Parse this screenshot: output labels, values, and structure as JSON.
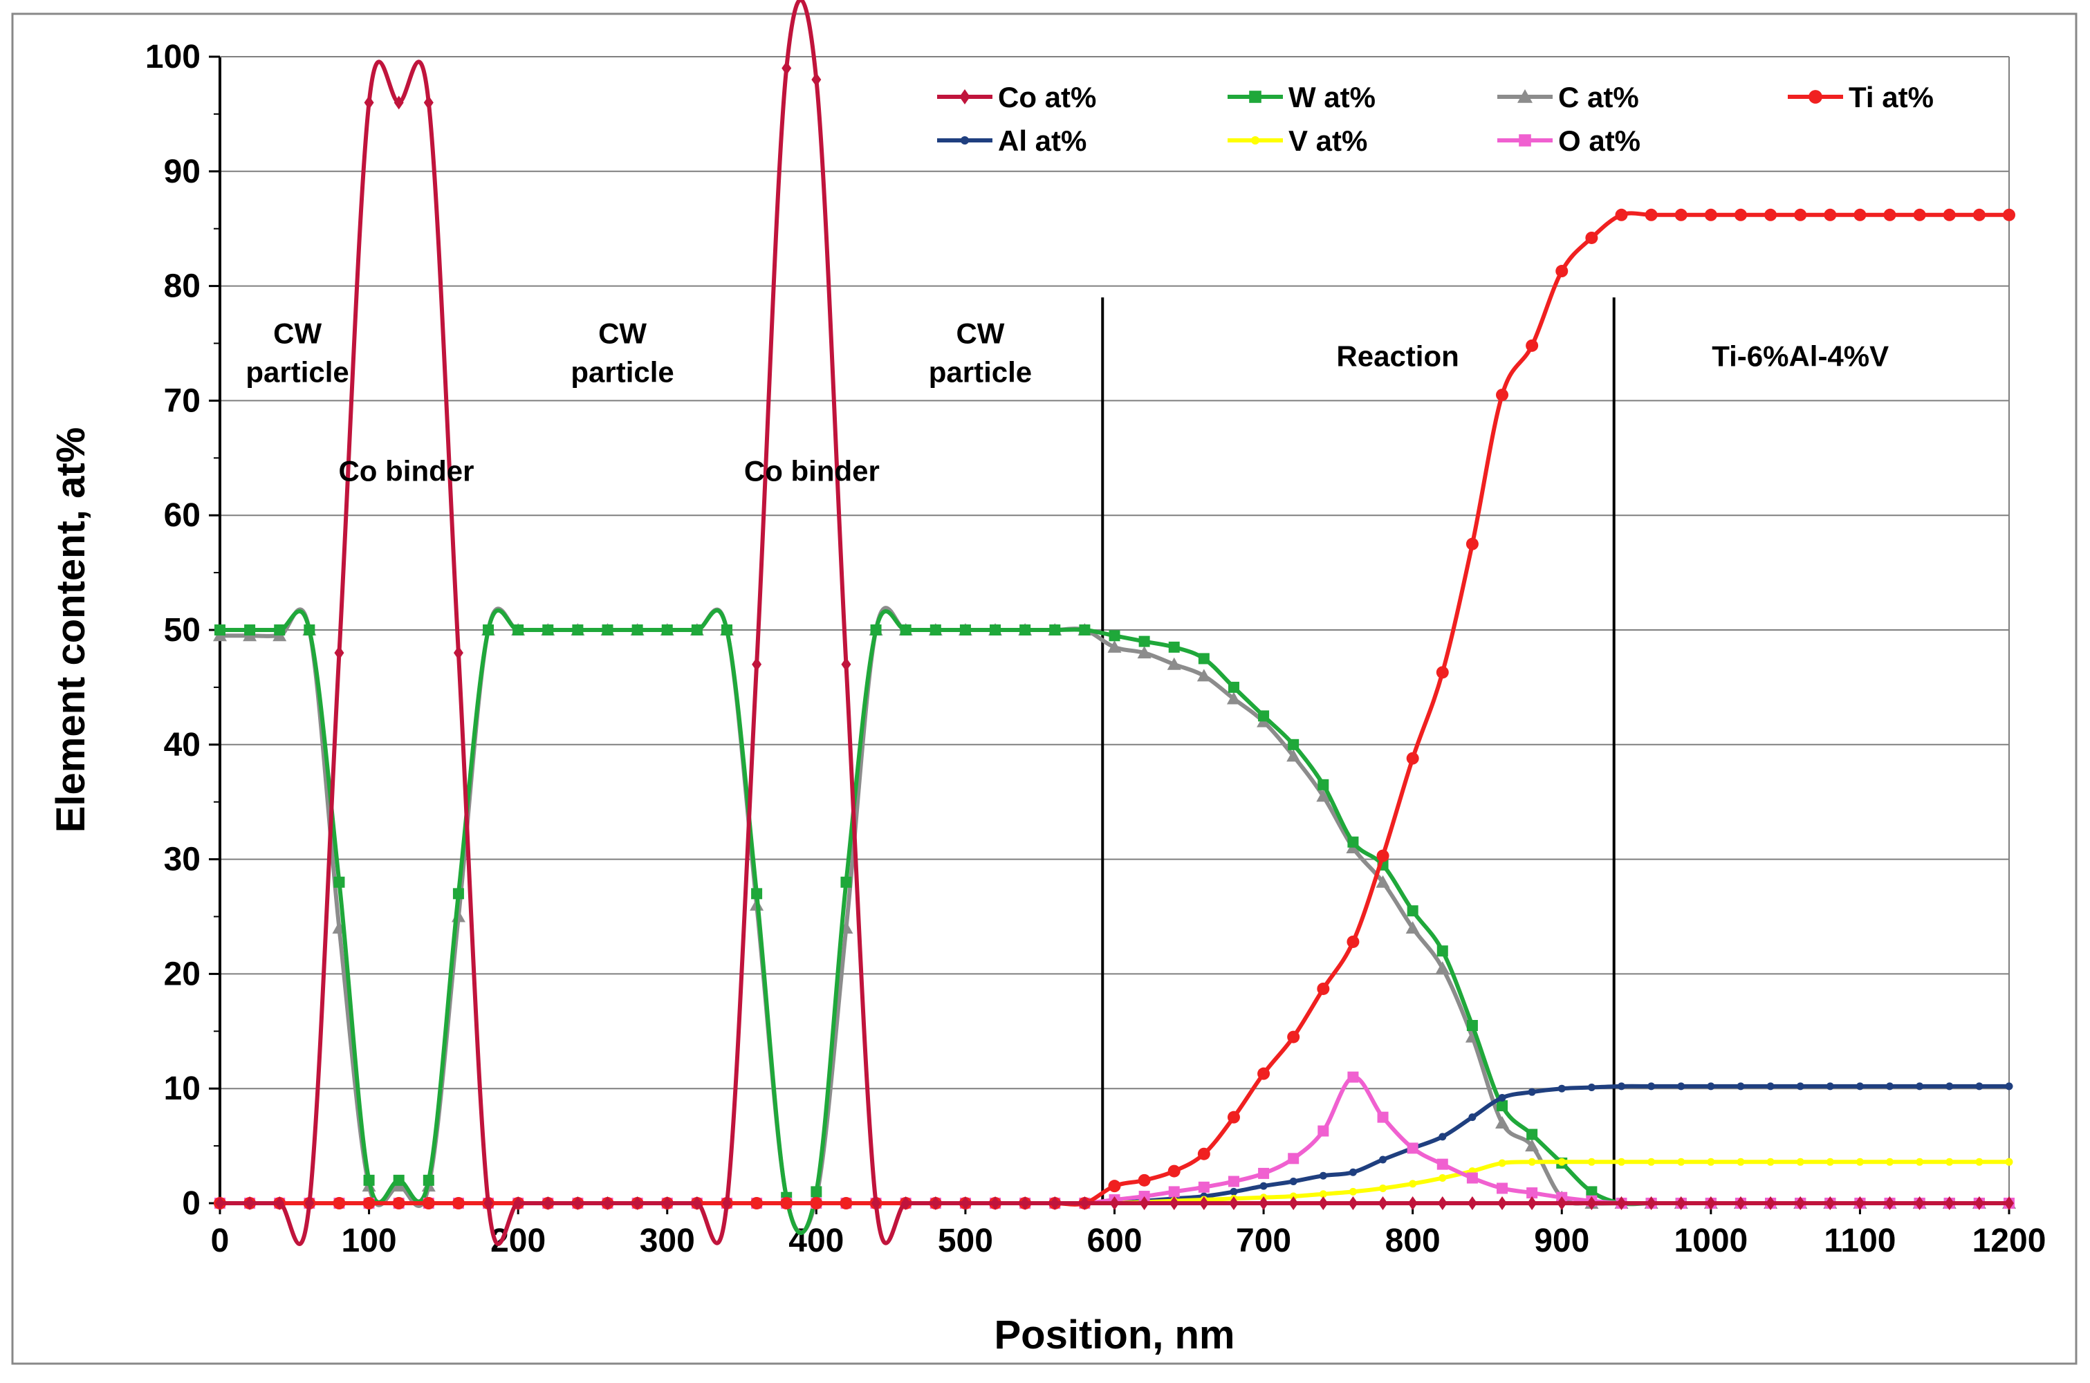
{
  "chart_data": {
    "type": "line",
    "title": "",
    "xlabel": "Position, nm",
    "ylabel": "Element content, at%",
    "xlim": [
      0,
      1200
    ],
    "ylim": [
      0,
      100
    ],
    "xticks": [
      0,
      100,
      200,
      300,
      400,
      500,
      600,
      700,
      800,
      900,
      1000,
      1100,
      1200
    ],
    "yticks": [
      0,
      10,
      20,
      30,
      40,
      50,
      60,
      70,
      80,
      90,
      100
    ],
    "grid": "horizontal",
    "legend_position": "top-right",
    "region_dividers": [
      592,
      935
    ],
    "series": [
      {
        "name": "Co at%",
        "color": "#C0143C",
        "marker": "diamond",
        "x": [
          0,
          20,
          40,
          60,
          80,
          100,
          120,
          140,
          160,
          180,
          200,
          220,
          240,
          260,
          280,
          300,
          320,
          340,
          360,
          380,
          400,
          420,
          440,
          460,
          480,
          500,
          520,
          540,
          560,
          580,
          600,
          620,
          640,
          660,
          680,
          700,
          720,
          740,
          760,
          780,
          800,
          820,
          840,
          860,
          880,
          900,
          920,
          940,
          960,
          980,
          1000,
          1020,
          1040,
          1060,
          1080,
          1100,
          1120,
          1140,
          1160,
          1180,
          1200
        ],
        "y": [
          0,
          0,
          0,
          0,
          48,
          96,
          96,
          96,
          48,
          0,
          0,
          0,
          0,
          0,
          0,
          0,
          0,
          0,
          47,
          99,
          98,
          47,
          0,
          0,
          0,
          0,
          0,
          0,
          0,
          0,
          0,
          0,
          0,
          0,
          0,
          0,
          0,
          0,
          0,
          0,
          0,
          0,
          0,
          0,
          0,
          0,
          0,
          0,
          0,
          0,
          0,
          0,
          0,
          0,
          0,
          0,
          0,
          0,
          0,
          0,
          0
        ]
      },
      {
        "name": "W at%",
        "color": "#1FA83A",
        "marker": "square",
        "x": [
          0,
          20,
          40,
          60,
          80,
          100,
          120,
          140,
          160,
          180,
          200,
          220,
          240,
          260,
          280,
          300,
          320,
          340,
          360,
          380,
          400,
          420,
          440,
          460,
          480,
          500,
          520,
          540,
          560,
          580,
          600,
          620,
          640,
          660,
          680,
          700,
          720,
          740,
          760,
          780,
          800,
          820,
          840,
          860,
          880,
          900,
          920,
          940,
          960,
          980,
          1000,
          1020,
          1040,
          1060,
          1080,
          1100,
          1120,
          1140,
          1160,
          1180,
          1200
        ],
        "y": [
          50,
          50,
          50,
          50,
          28,
          2,
          2,
          2,
          27,
          50,
          50,
          50,
          50,
          50,
          50,
          50,
          50,
          50,
          27,
          0.5,
          1,
          28,
          50,
          50,
          50,
          50,
          50,
          50,
          50,
          50,
          49.5,
          49,
          48.5,
          47.5,
          45,
          42.5,
          40,
          36.5,
          31.5,
          29.5,
          25.5,
          22,
          15.5,
          8.5,
          6,
          3.5,
          1,
          0,
          0,
          0,
          0,
          0,
          0,
          0,
          0,
          0,
          0,
          0,
          0,
          0,
          0
        ]
      },
      {
        "name": "C at%",
        "color": "#8C8C8C",
        "marker": "triangle",
        "x": [
          0,
          20,
          40,
          60,
          80,
          100,
          120,
          140,
          160,
          180,
          200,
          220,
          240,
          260,
          280,
          300,
          320,
          340,
          360,
          380,
          400,
          420,
          440,
          460,
          480,
          500,
          520,
          540,
          560,
          580,
          600,
          620,
          640,
          660,
          680,
          700,
          720,
          740,
          760,
          780,
          800,
          820,
          840,
          860,
          880,
          900,
          920,
          940,
          960,
          980,
          1000,
          1020,
          1040,
          1060,
          1080,
          1100,
          1120,
          1140,
          1160,
          1180,
          1200
        ],
        "y": [
          49.5,
          49.5,
          49.5,
          50,
          24,
          1.5,
          1.5,
          1.5,
          25,
          50,
          50,
          50,
          50,
          50,
          50,
          50,
          50,
          50,
          26,
          0.5,
          0.5,
          24,
          50,
          50,
          50,
          50,
          50,
          50,
          50,
          50,
          48.5,
          48,
          47,
          46,
          44,
          42,
          39,
          35.5,
          31,
          28,
          24,
          20.5,
          14.5,
          7,
          5,
          0.5,
          0,
          0,
          0,
          0,
          0,
          0,
          0,
          0,
          0,
          0,
          0,
          0,
          0,
          0,
          0
        ]
      },
      {
        "name": "Ti at%",
        "color": "#F02020",
        "marker": "circle",
        "x": [
          0,
          20,
          40,
          60,
          80,
          100,
          120,
          140,
          160,
          180,
          200,
          220,
          240,
          260,
          280,
          300,
          320,
          340,
          360,
          380,
          400,
          420,
          440,
          460,
          480,
          500,
          520,
          540,
          560,
          580,
          600,
          620,
          640,
          660,
          680,
          700,
          720,
          740,
          760,
          780,
          800,
          820,
          840,
          860,
          880,
          900,
          920,
          940,
          960,
          980,
          1000,
          1020,
          1040,
          1060,
          1080,
          1100,
          1120,
          1140,
          1160,
          1180,
          1200
        ],
        "y": [
          0,
          0,
          0,
          0,
          0,
          0,
          0,
          0,
          0,
          0,
          0,
          0,
          0,
          0,
          0,
          0,
          0,
          0,
          0,
          0,
          0,
          0,
          0,
          0,
          0,
          0,
          0,
          0,
          0,
          0,
          1.5,
          2,
          2.8,
          4.3,
          7.5,
          11.3,
          14.5,
          18.7,
          22.8,
          30.3,
          38.8,
          46.3,
          57.5,
          70.5,
          74.8,
          81.3,
          84.2,
          86.2,
          86.2,
          86.2,
          86.2,
          86.2,
          86.2,
          86.2,
          86.2,
          86.2,
          86.2,
          86.2,
          86.2,
          86.2,
          86.2
        ]
      },
      {
        "name": "Al at%",
        "color": "#1F3F7F",
        "marker": "dot",
        "x": [
          600,
          620,
          640,
          660,
          680,
          700,
          720,
          740,
          760,
          780,
          800,
          820,
          840,
          860,
          880,
          900,
          920,
          940,
          960,
          980,
          1000,
          1020,
          1040,
          1060,
          1080,
          1100,
          1120,
          1140,
          1160,
          1180,
          1200
        ],
        "y": [
          0,
          0.2,
          0.4,
          0.6,
          1,
          1.5,
          1.9,
          2.4,
          2.7,
          3.8,
          4.8,
          5.8,
          7.5,
          9.2,
          9.7,
          10,
          10.1,
          10.2,
          10.2,
          10.2,
          10.2,
          10.2,
          10.2,
          10.2,
          10.2,
          10.2,
          10.2,
          10.2,
          10.2,
          10.2,
          10.2
        ]
      },
      {
        "name": "V at%",
        "color": "#FFFF00",
        "marker": "dot",
        "x": [
          600,
          620,
          640,
          660,
          680,
          700,
          720,
          740,
          760,
          780,
          800,
          820,
          840,
          860,
          880,
          900,
          920,
          940,
          960,
          980,
          1000,
          1020,
          1040,
          1060,
          1080,
          1100,
          1120,
          1140,
          1160,
          1180,
          1200
        ],
        "y": [
          0,
          0.1,
          0.2,
          0.3,
          0.4,
          0.5,
          0.6,
          0.8,
          1,
          1.3,
          1.7,
          2.2,
          2.8,
          3.5,
          3.6,
          3.6,
          3.6,
          3.6,
          3.6,
          3.6,
          3.6,
          3.6,
          3.6,
          3.6,
          3.6,
          3.6,
          3.6,
          3.6,
          3.6,
          3.6,
          3.6
        ]
      },
      {
        "name": "O at%",
        "color": "#F060D0",
        "marker": "square",
        "x": [
          0,
          20,
          40,
          60,
          80,
          100,
          120,
          140,
          160,
          180,
          200,
          220,
          240,
          260,
          280,
          300,
          320,
          340,
          360,
          380,
          400,
          420,
          440,
          460,
          480,
          500,
          520,
          540,
          560,
          580,
          600,
          620,
          640,
          660,
          680,
          700,
          720,
          740,
          760,
          780,
          800,
          820,
          840,
          860,
          880,
          900,
          920,
          940,
          960,
          980,
          1000,
          1020,
          1040,
          1060,
          1080,
          1100,
          1120,
          1140,
          1160,
          1180,
          1200
        ],
        "y": [
          0,
          0,
          0,
          0,
          0,
          0,
          0,
          0,
          0,
          0,
          0,
          0,
          0,
          0,
          0,
          0,
          0,
          0,
          0,
          0,
          0,
          0,
          0,
          0,
          0,
          0,
          0,
          0,
          0,
          0,
          0.3,
          0.6,
          1,
          1.4,
          1.9,
          2.6,
          3.9,
          6.3,
          11,
          7.5,
          4.8,
          3.4,
          2.2,
          1.3,
          0.9,
          0.5,
          0.2,
          0,
          0,
          0,
          0,
          0,
          0,
          0,
          0,
          0,
          0,
          0,
          0,
          0,
          0
        ]
      }
    ],
    "annotations": [
      {
        "lines": [
          "CW",
          "particle"
        ],
        "x": 52,
        "y": 75
      },
      {
        "lines": [
          "CW",
          "particle"
        ],
        "x": 270,
        "y": 75
      },
      {
        "lines": [
          "CW",
          "particle"
        ],
        "x": 510,
        "y": 75
      },
      {
        "lines": [
          "Co binder"
        ],
        "x": 125,
        "y": 63
      },
      {
        "lines": [
          "Co binder"
        ],
        "x": 397,
        "y": 63
      },
      {
        "lines": [
          "Reaction"
        ],
        "x": 790,
        "y": 73
      },
      {
        "lines": [
          "Ti-6%Al-4%V"
        ],
        "x": 1060,
        "y": 73
      }
    ]
  }
}
